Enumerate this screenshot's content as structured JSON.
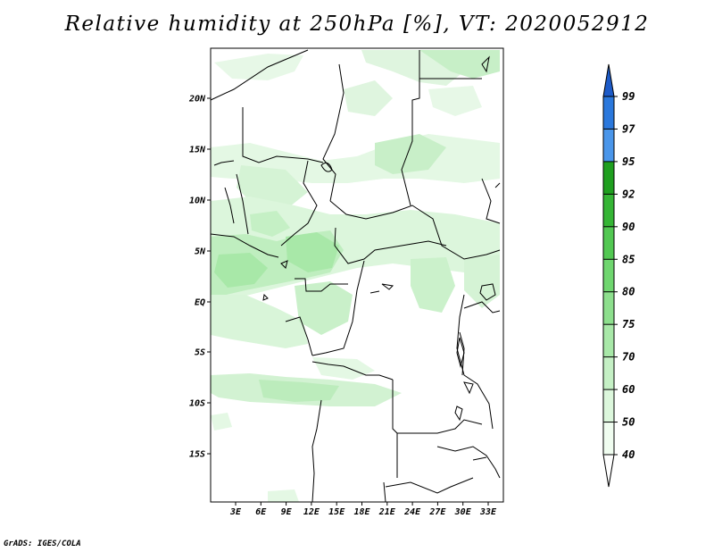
{
  "title": "Relative humidity at 250hPa [%], VT: 2020052912",
  "credit": "GrADS: IGES/COLA",
  "lat_labels": [
    "20N",
    "15N",
    "10N",
    "5N",
    "EQ",
    "5S",
    "10S",
    "15S"
  ],
  "lon_labels": [
    "3E",
    "6E",
    "9E",
    "12E",
    "15E",
    "18E",
    "21E",
    "24E",
    "27E",
    "30E",
    "33E"
  ],
  "colorbar": {
    "levels": [
      "40",
      "50",
      "60",
      "70",
      "75",
      "80",
      "85",
      "90",
      "92",
      "95",
      "97",
      "99"
    ],
    "colors": [
      "#f0fdf0",
      "#dcf7dc",
      "#c5f0c5",
      "#a8e8a8",
      "#8ddf8d",
      "#6fd66f",
      "#52c852",
      "#35b535",
      "#1f9f1f",
      "#4a96ea",
      "#2b78dc",
      "#1d5bc8"
    ],
    "under_color": "#ffffff",
    "over_color": "#1d5bc8"
  },
  "map_colors": {
    "land_line": "#000000",
    "humid_light": "#e4f8e4",
    "humid_mid": "#c3efc3",
    "humid_strong": "#9fe39f"
  }
}
